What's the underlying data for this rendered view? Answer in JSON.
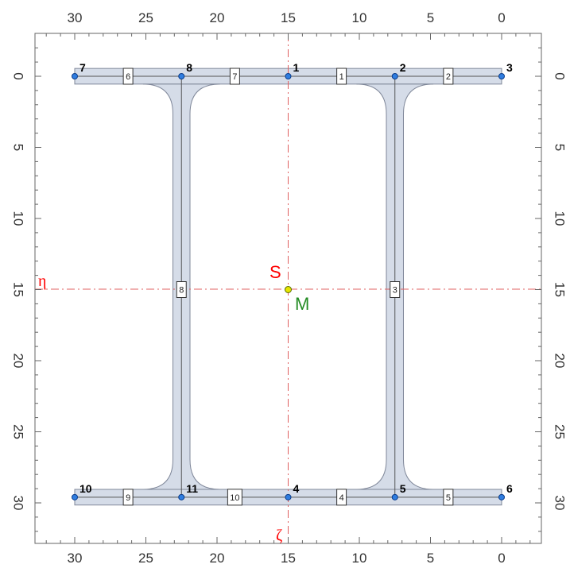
{
  "axes": {
    "x_ticks": [
      "30",
      "25",
      "20",
      "15",
      "10",
      "5",
      "0"
    ],
    "y_ticks": [
      "0",
      "5",
      "10",
      "15",
      "20",
      "25",
      "30"
    ],
    "x_values": [
      30,
      25,
      20,
      15,
      10,
      5,
      0
    ],
    "y_values": [
      0,
      5,
      10,
      15,
      20,
      25,
      30
    ]
  },
  "labels": {
    "eta": "η",
    "zeta": "ζ",
    "s": "S",
    "m": "M"
  },
  "colors": {
    "section_fill": "#d5dce8",
    "section_stroke": "#7f8799",
    "axis_line": "#e06060",
    "node": "#2f7de0",
    "centre": "#e6e600",
    "label_s": "#ff0000",
    "label_m": "#228b22"
  },
  "nodes": [
    {
      "id": "1",
      "y": 15,
      "z": 0
    },
    {
      "id": "2",
      "y": 7.5,
      "z": 0
    },
    {
      "id": "3",
      "y": 0,
      "z": 0
    },
    {
      "id": "4",
      "y": 15,
      "z": 29.6
    },
    {
      "id": "5",
      "y": 7.5,
      "z": 29.6
    },
    {
      "id": "6",
      "y": 0,
      "z": 29.6
    },
    {
      "id": "7",
      "y": 30,
      "z": 0
    },
    {
      "id": "8",
      "y": 22.5,
      "z": 0
    },
    {
      "id": "10",
      "y": 30,
      "z": 29.6
    },
    {
      "id": "11",
      "y": 22.5,
      "z": 29.6
    }
  ],
  "elements": [
    {
      "id": "1",
      "y": 11.25,
      "z": 0
    },
    {
      "id": "2",
      "y": 3.75,
      "z": 0
    },
    {
      "id": "3",
      "y": 7.5,
      "z": 15
    },
    {
      "id": "4",
      "y": 11.25,
      "z": 29.6
    },
    {
      "id": "5",
      "y": 3.75,
      "z": 29.6
    },
    {
      "id": "6",
      "y": 26.25,
      "z": 0
    },
    {
      "id": "7",
      "y": 18.75,
      "z": 0
    },
    {
      "id": "8",
      "y": 22.5,
      "z": 15
    },
    {
      "id": "9",
      "y": 26.25,
      "z": 29.6
    },
    {
      "id": "10",
      "y": 18.75,
      "z": 29.6
    }
  ],
  "centre": {
    "y": 15,
    "z": 14.8
  }
}
